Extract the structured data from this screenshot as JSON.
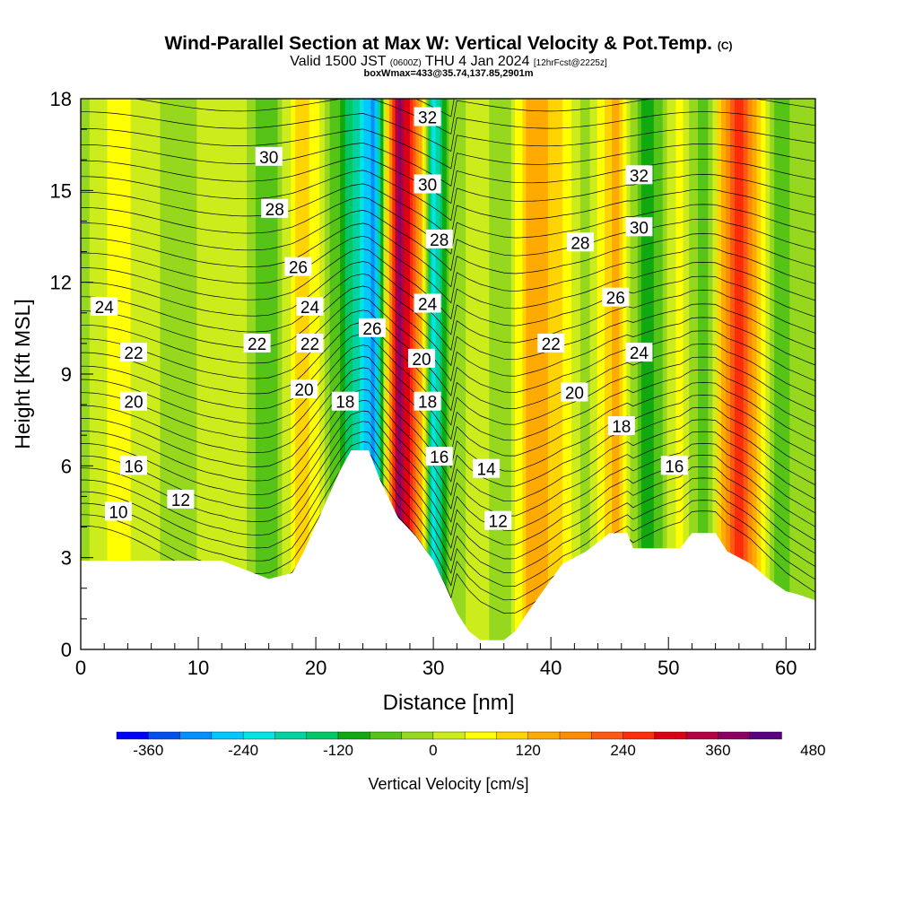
{
  "title": {
    "main": "Wind-Parallel Section at Max W: Vertical Velocity & Pot.Temp.",
    "copyright": "(C)",
    "valid_prefix": "Valid 1500 JST",
    "valid_utc": "(0600Z)",
    "valid_date": "THU 4 Jan 2024",
    "valid_fcst": "[12hrFcst@2225z]",
    "box": "boxWmax=433@35.74,137.85,2901m"
  },
  "colorbar": {
    "label": "Vertical Velocity [cm/s]",
    "tick_labels": [
      "-360",
      "-240",
      "-120",
      "0",
      "120",
      "240",
      "360",
      "480"
    ],
    "tick_values": [
      -360,
      -240,
      -120,
      0,
      120,
      240,
      360,
      480
    ],
    "colors": [
      "#0000ff",
      "#0050f0",
      "#0090ff",
      "#00c8ff",
      "#00e6e6",
      "#00d2a0",
      "#00c864",
      "#10aa10",
      "#55c416",
      "#95d81e",
      "#ccec1c",
      "#ffff00",
      "#ffd400",
      "#ffaa00",
      "#ff8c00",
      "#ff5a14",
      "#ff2d0a",
      "#dc0014",
      "#b40040",
      "#8c0064",
      "#5a0082"
    ]
  },
  "chart_data": {
    "type": "heatmap",
    "xlabel": "Distance [nm]",
    "ylabel": "Height [Kft MSL]",
    "xlim": [
      0,
      62.5
    ],
    "ylim": [
      0,
      18
    ],
    "xticks": [
      0,
      10,
      20,
      30,
      40,
      50,
      60
    ],
    "yticks": [
      0,
      3,
      6,
      9,
      12,
      15,
      18
    ],
    "fill_variable": "Vertical Velocity [cm/s]",
    "contour_variable": "Pot.Temp.",
    "vertical_velocity_bands": [
      {
        "x": 0,
        "w": -20
      },
      {
        "x": 3,
        "w": 60
      },
      {
        "x": 8,
        "w": -20
      },
      {
        "x": 13,
        "w": 40
      },
      {
        "x": 16,
        "w": -80
      },
      {
        "x": 19,
        "w": 120
      },
      {
        "x": 22.5,
        "w": -120
      },
      {
        "x": 25,
        "w": -300
      },
      {
        "x": 27,
        "w": 400
      },
      {
        "x": 29,
        "w": 140
      },
      {
        "x": 30,
        "w": -240
      },
      {
        "x": 31.5,
        "w": -20
      },
      {
        "x": 34,
        "w": 20
      },
      {
        "x": 36,
        "w": -40
      },
      {
        "x": 38.5,
        "w": 160
      },
      {
        "x": 41,
        "w": 80
      },
      {
        "x": 43,
        "w": -20
      },
      {
        "x": 45.5,
        "w": 140
      },
      {
        "x": 48,
        "w": -120
      },
      {
        "x": 51,
        "w": 60
      },
      {
        "x": 53,
        "w": -80
      },
      {
        "x": 56,
        "w": 300
      },
      {
        "x": 59,
        "w": -60
      },
      {
        "x": 62.5,
        "w": 0
      }
    ],
    "terrain": [
      [
        0,
        2.9
      ],
      [
        12,
        2.9
      ],
      [
        14,
        2.6
      ],
      [
        16,
        2.3
      ],
      [
        18,
        2.5
      ],
      [
        19,
        3.2
      ],
      [
        20.5,
        4.5
      ],
      [
        22,
        5.8
      ],
      [
        23,
        6.5
      ],
      [
        24.5,
        6.5
      ],
      [
        25.5,
        5.5
      ],
      [
        27,
        4.3
      ],
      [
        28.5,
        3.7
      ],
      [
        30,
        2.9
      ],
      [
        31,
        2.1
      ],
      [
        32,
        1.2
      ],
      [
        33,
        0.6
      ],
      [
        34,
        0.3
      ],
      [
        36,
        0.3
      ],
      [
        37,
        0.6
      ],
      [
        38,
        1.2
      ],
      [
        39.5,
        2.0
      ],
      [
        41,
        2.8
      ],
      [
        43,
        3.2
      ],
      [
        45,
        3.8
      ],
      [
        46.5,
        3.8
      ],
      [
        47,
        3.3
      ],
      [
        51,
        3.3
      ],
      [
        52,
        3.8
      ],
      [
        54,
        3.8
      ],
      [
        55,
        3.2
      ],
      [
        57,
        2.8
      ],
      [
        58.5,
        2.3
      ],
      [
        60,
        1.9
      ],
      [
        61,
        1.8
      ],
      [
        62.5,
        1.6
      ]
    ],
    "theta_contour_labels": [
      {
        "text": "30",
        "x": 16,
        "y": 16.1
      },
      {
        "text": "28",
        "x": 16.5,
        "y": 14.4
      },
      {
        "text": "26",
        "x": 18.5,
        "y": 12.5
      },
      {
        "text": "24",
        "x": 2,
        "y": 11.2
      },
      {
        "text": "24",
        "x": 19.5,
        "y": 11.2
      },
      {
        "text": "22",
        "x": 4.5,
        "y": 9.7
      },
      {
        "text": "22",
        "x": 15,
        "y": 10.0
      },
      {
        "text": "22",
        "x": 19.5,
        "y": 10.0
      },
      {
        "text": "20",
        "x": 4.5,
        "y": 8.1
      },
      {
        "text": "20",
        "x": 19,
        "y": 8.5
      },
      {
        "text": "18",
        "x": 22.5,
        "y": 8.1
      },
      {
        "text": "16",
        "x": 4.5,
        "y": 6.0
      },
      {
        "text": "12",
        "x": 8.5,
        "y": 4.9
      },
      {
        "text": "10",
        "x": 3.2,
        "y": 4.5
      },
      {
        "text": "26",
        "x": 24.8,
        "y": 10.5
      },
      {
        "text": "32",
        "x": 29.5,
        "y": 17.4
      },
      {
        "text": "30",
        "x": 29.5,
        "y": 15.2
      },
      {
        "text": "28",
        "x": 30.5,
        "y": 13.4
      },
      {
        "text": "24",
        "x": 29.5,
        "y": 11.3
      },
      {
        "text": "20",
        "x": 29,
        "y": 9.5
      },
      {
        "text": "18",
        "x": 29.5,
        "y": 8.1
      },
      {
        "text": "16",
        "x": 30.5,
        "y": 6.3
      },
      {
        "text": "14",
        "x": 34.5,
        "y": 5.9
      },
      {
        "text": "12",
        "x": 35.5,
        "y": 4.2
      },
      {
        "text": "32",
        "x": 47.5,
        "y": 15.5
      },
      {
        "text": "30",
        "x": 47.5,
        "y": 13.8
      },
      {
        "text": "28",
        "x": 42.5,
        "y": 13.3
      },
      {
        "text": "26",
        "x": 45.5,
        "y": 11.5
      },
      {
        "text": "24",
        "x": 47.5,
        "y": 9.7
      },
      {
        "text": "22",
        "x": 40,
        "y": 10.0
      },
      {
        "text": "20",
        "x": 42,
        "y": 8.4
      },
      {
        "text": "18",
        "x": 46,
        "y": 7.3
      },
      {
        "text": "16",
        "x": 50.5,
        "y": 6.0
      }
    ]
  }
}
